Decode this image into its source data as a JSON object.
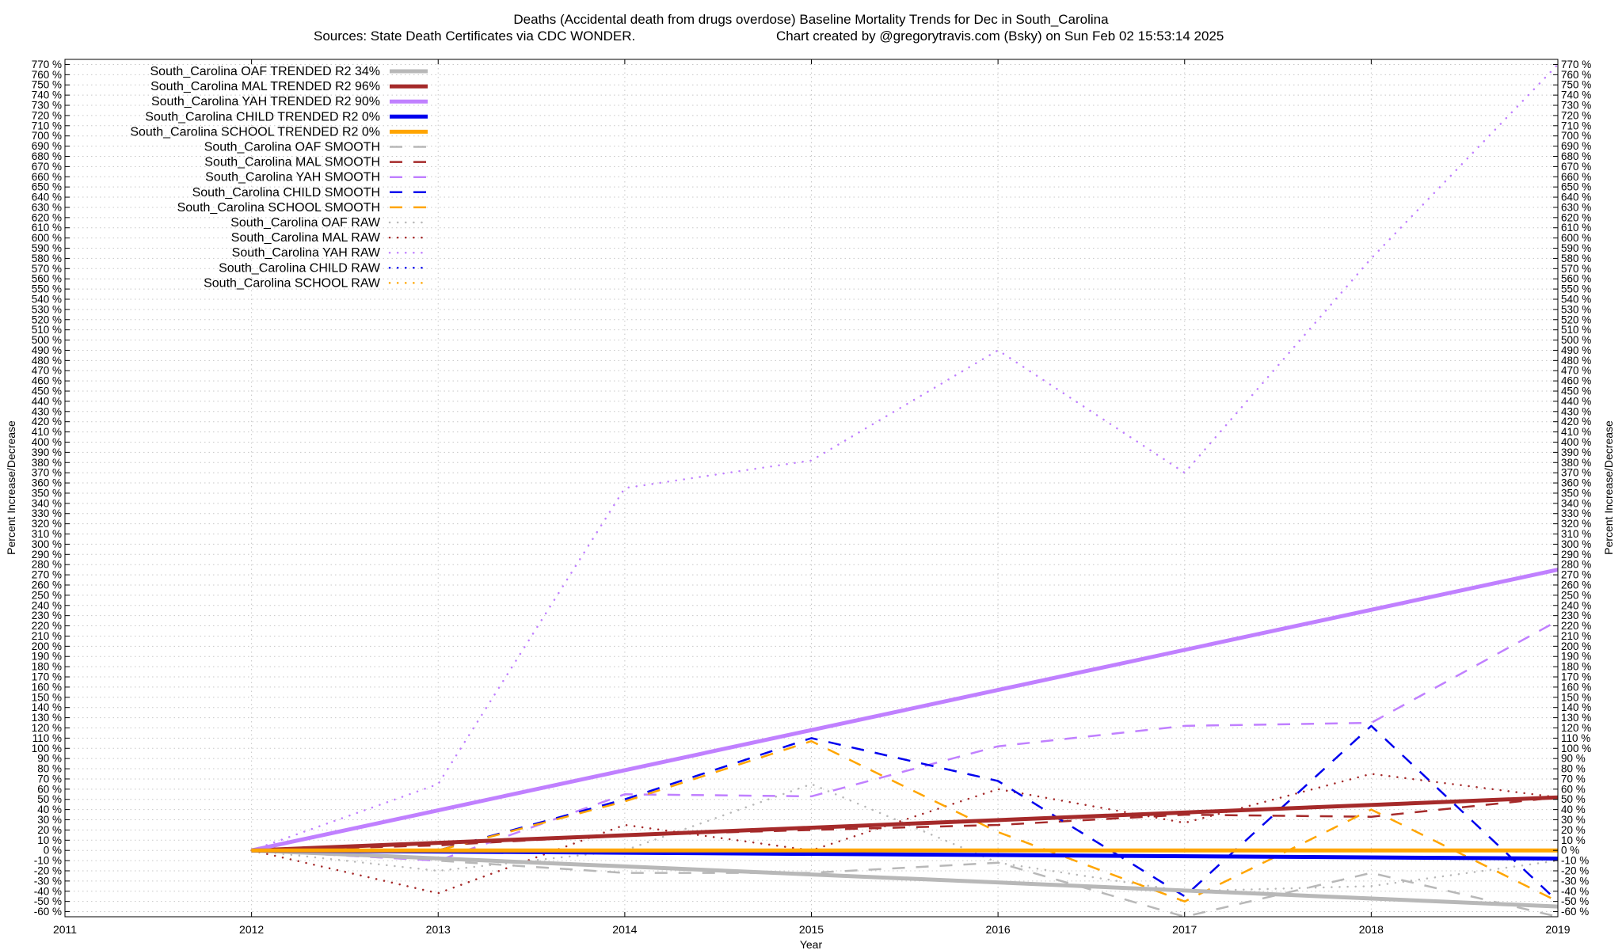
{
  "chart_data": {
    "type": "line",
    "title_line1": "Deaths (Accidental death from drugs overdose)  Baseline Mortality Trends for Dec in South_Carolina",
    "title_line2_left": "Sources: State Death Certificates via CDC WONDER.",
    "title_line2_right": "Chart created by @gregorytravis.com (Bsky) on Sun Feb 02 15:53:14 2025",
    "xlabel": "Year",
    "ylabel": "Percent Increase/Decrease",
    "xlim": [
      2011,
      2019
    ],
    "ylim": [
      -65,
      775
    ],
    "x_ticks": [
      "2011",
      "2012",
      "2013",
      "2014",
      "2015",
      "2016",
      "2017",
      "2018",
      "2019"
    ],
    "y_tick_min": -60,
    "y_tick_max": 770,
    "y_tick_step": 10,
    "y_tick_suffix": " %",
    "grid": true,
    "legend_position": "top-left",
    "series": [
      {
        "name": "South_Carolina OAF TRENDED R2  34%",
        "style": "trend",
        "color": "#b8b8b8",
        "x": [
          2012,
          2019
        ],
        "y": [
          0,
          -55
        ]
      },
      {
        "name": "South_Carolina MAL TRENDED R2  96%",
        "style": "trend",
        "color": "#a52a2a",
        "x": [
          2012,
          2019
        ],
        "y": [
          0,
          52
        ]
      },
      {
        "name": "South_Carolina YAH TRENDED R2  90%",
        "style": "trend",
        "color": "#c080ff",
        "x": [
          2012,
          2019
        ],
        "y": [
          0,
          275
        ]
      },
      {
        "name": "South_Carolina CHILD TRENDED R2   0%",
        "style": "trend",
        "color": "#0000ee",
        "x": [
          2012,
          2019
        ],
        "y": [
          0,
          -8
        ]
      },
      {
        "name": "South_Carolina SCHOOL TRENDED R2   0%",
        "style": "trend",
        "color": "#ffa500",
        "x": [
          2012,
          2019
        ],
        "y": [
          0,
          0
        ]
      },
      {
        "name": "South_Carolina OAF SMOOTH",
        "style": "smooth",
        "color": "#b8b8b8",
        "x": [
          2012,
          2013,
          2014,
          2015,
          2016,
          2017,
          2018,
          2019
        ],
        "y": [
          0,
          -10,
          -22,
          -22,
          -12,
          -65,
          -22,
          -65
        ]
      },
      {
        "name": "South_Carolina MAL SMOOTH",
        "style": "smooth",
        "color": "#a52a2a",
        "x": [
          2012,
          2013,
          2014,
          2015,
          2016,
          2017,
          2018,
          2019
        ],
        "y": [
          0,
          5,
          15,
          20,
          25,
          35,
          33,
          52
        ]
      },
      {
        "name": "South_Carolina YAH SMOOTH",
        "style": "smooth",
        "color": "#c080ff",
        "x": [
          2012,
          2013,
          2014,
          2015,
          2016,
          2017,
          2018,
          2019
        ],
        "y": [
          0,
          -10,
          55,
          53,
          102,
          122,
          125,
          225
        ]
      },
      {
        "name": "South_Carolina CHILD SMOOTH",
        "style": "smooth",
        "color": "#0000ee",
        "x": [
          2012,
          2013,
          2014,
          2015,
          2016,
          2017,
          2018,
          2019
        ],
        "y": [
          0,
          0,
          50,
          110,
          68,
          -45,
          122,
          -50
        ]
      },
      {
        "name": "South_Carolina SCHOOL SMOOTH",
        "style": "smooth",
        "color": "#ffa500",
        "x": [
          2012,
          2013,
          2014,
          2015,
          2016,
          2017,
          2018,
          2019
        ],
        "y": [
          0,
          0,
          48,
          107,
          18,
          -50,
          40,
          -50
        ]
      },
      {
        "name": "South_Carolina OAF RAW",
        "style": "raw",
        "color": "#b8b8b8",
        "x": [
          2012,
          2013,
          2014,
          2015,
          2016,
          2017,
          2018,
          2019
        ],
        "y": [
          0,
          -20,
          0,
          65,
          -12,
          -40,
          -35,
          -10
        ]
      },
      {
        "name": "South_Carolina MAL RAW",
        "style": "raw",
        "color": "#a52a2a",
        "x": [
          2012,
          2013,
          2014,
          2015,
          2016,
          2017,
          2018,
          2019
        ],
        "y": [
          0,
          -42,
          25,
          0,
          60,
          27,
          75,
          52
        ]
      },
      {
        "name": "South_Carolina YAH RAW",
        "style": "raw",
        "color": "#c080ff",
        "x": [
          2012,
          2013,
          2014,
          2015,
          2016,
          2017,
          2018,
          2019
        ],
        "y": [
          0,
          65,
          355,
          382,
          490,
          370,
          580,
          770
        ]
      },
      {
        "name": "South_Carolina CHILD RAW",
        "style": "raw",
        "color": "#0000ee",
        "x": [
          2012,
          2013,
          2014,
          2015,
          2016,
          2017,
          2018,
          2019
        ],
        "y": [
          0,
          0,
          0,
          0,
          0,
          0,
          0,
          0
        ]
      },
      {
        "name": "South_Carolina SCHOOL RAW",
        "style": "raw",
        "color": "#ffa500",
        "x": [
          2012,
          2013,
          2014,
          2015,
          2016,
          2017,
          2018,
          2019
        ],
        "y": [
          0,
          0,
          0,
          0,
          0,
          0,
          0,
          0
        ]
      }
    ]
  }
}
